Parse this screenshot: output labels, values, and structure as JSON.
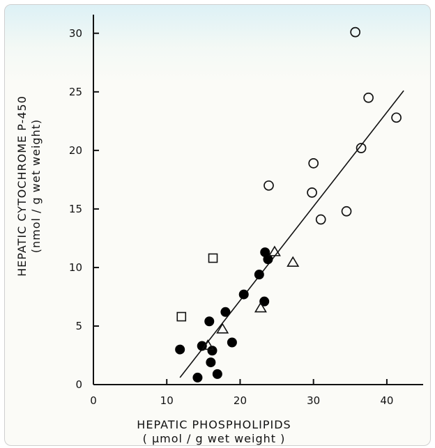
{
  "chart_data": {
    "type": "scatter",
    "xlabel": "HEPATIC   PHOSPHOLIPIDS",
    "xunit": "( µmol / g  wet  weight )",
    "ylabel": "HEPATIC  CYTOCHROME  P-450",
    "yunit": "(nmol / g  wet  weight)",
    "xlim": [
      0,
      44
    ],
    "ylim": [
      0,
      31
    ],
    "xticks": [
      0,
      10,
      20,
      30,
      40
    ],
    "yticks": [
      0,
      5,
      10,
      15,
      20,
      25,
      30
    ],
    "grid": false,
    "series": [
      {
        "marker": "filled-circle",
        "points": [
          [
            11.8,
            3.0
          ],
          [
            14.2,
            0.6
          ],
          [
            14.8,
            3.3
          ],
          [
            15.8,
            5.4
          ],
          [
            16.0,
            1.9
          ],
          [
            16.2,
            2.9
          ],
          [
            16.9,
            0.9
          ],
          [
            18.0,
            6.2
          ],
          [
            18.9,
            3.6
          ],
          [
            20.5,
            7.7
          ],
          [
            22.6,
            9.4
          ],
          [
            23.3,
            7.1
          ],
          [
            23.4,
            11.3
          ],
          [
            23.8,
            10.7
          ]
        ]
      },
      {
        "marker": "open-circle",
        "points": [
          [
            23.9,
            17.0
          ],
          [
            29.8,
            16.4
          ],
          [
            30.0,
            18.9
          ],
          [
            31.0,
            14.1
          ],
          [
            34.5,
            14.8
          ],
          [
            35.7,
            30.1
          ],
          [
            36.5,
            20.2
          ],
          [
            37.5,
            24.5
          ],
          [
            41.3,
            22.8
          ]
        ]
      },
      {
        "marker": "open-triangle",
        "points": [
          [
            15.6,
            3.3
          ],
          [
            17.6,
            4.7
          ],
          [
            22.8,
            6.5
          ],
          [
            24.7,
            11.3
          ],
          [
            27.2,
            10.4
          ]
        ]
      },
      {
        "marker": "open-square",
        "points": [
          [
            12.0,
            5.8
          ],
          [
            16.3,
            10.8
          ]
        ]
      }
    ],
    "regression_line": [
      [
        11.8,
        0.6
      ],
      [
        42.3,
        25.1
      ]
    ]
  }
}
